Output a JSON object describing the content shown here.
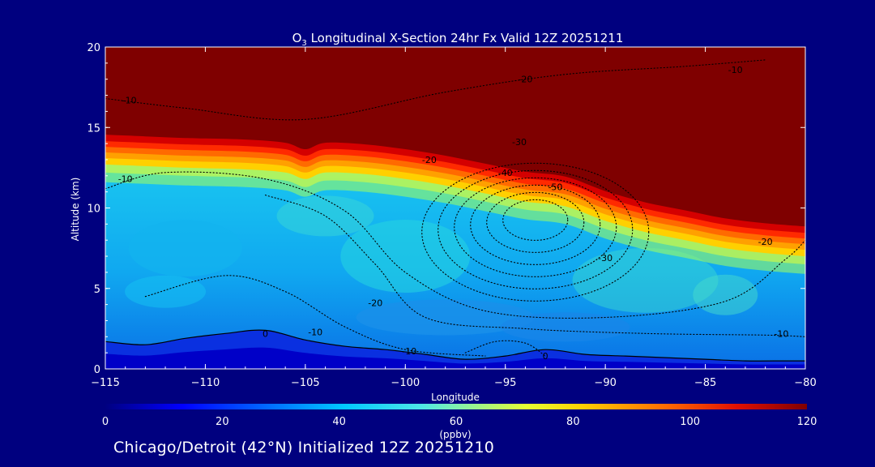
{
  "chart_data": {
    "type": "heatmap",
    "title": "O3 Longitudinal X-Section 24hr  Fx Valid 12Z 20251211",
    "xlabel": "Longitude",
    "ylabel": "Altitude (km)",
    "xlim": [
      -115,
      -80
    ],
    "ylim": [
      0,
      20
    ],
    "x_ticks": [
      -115,
      -110,
      -105,
      -100,
      -95,
      -90,
      -85,
      -80
    ],
    "y_ticks": [
      0,
      5,
      10,
      15,
      20
    ],
    "colorbar": {
      "label": "(ppbv)",
      "range": [
        0,
        120
      ],
      "ticks": [
        0,
        20,
        40,
        60,
        80,
        100,
        120
      ]
    },
    "tropopause_altitude_km": {
      "longitude": [
        -115,
        -113,
        -111,
        -108,
        -106,
        -105,
        -104,
        -102,
        -100,
        -98,
        -96,
        -94,
        -92,
        -90,
        -88,
        -86,
        -84,
        -82,
        -80
      ],
      "altitude": [
        13.8,
        13.7,
        13.6,
        13.5,
        13.3,
        12.9,
        13.3,
        13.2,
        12.9,
        12.5,
        12.0,
        11.5,
        11.2,
        10.3,
        9.6,
        9.1,
        8.6,
        8.3,
        8.1
      ]
    },
    "boundary_layer_top_km": {
      "longitude": [
        -115,
        -113,
        -111,
        -109,
        -107,
        -105,
        -103,
        -101,
        -99,
        -97,
        -95,
        -93,
        -91,
        -89,
        -87,
        -85,
        -83,
        -81,
        -80
      ],
      "altitude": [
        1.7,
        1.5,
        1.9,
        2.2,
        2.4,
        1.8,
        1.4,
        1.2,
        0.9,
        0.6,
        0.8,
        1.2,
        0.9,
        0.8,
        0.7,
        0.6,
        0.5,
        0.5,
        0.5
      ]
    },
    "contour_labels": [
      {
        "text": "-10",
        "lon": -113.8,
        "alt": 16.5
      },
      {
        "text": "-10",
        "lon": -114.0,
        "alt": 11.6
      },
      {
        "text": "-20",
        "lon": -94.0,
        "alt": 17.8
      },
      {
        "text": "-10",
        "lon": -83.5,
        "alt": 18.4
      },
      {
        "text": "-30",
        "lon": -94.3,
        "alt": 13.9
      },
      {
        "text": "-20",
        "lon": -98.8,
        "alt": 12.8
      },
      {
        "text": "-40",
        "lon": -95.0,
        "alt": 12.0
      },
      {
        "text": "-50",
        "lon": -92.5,
        "alt": 11.1
      },
      {
        "text": "-30",
        "lon": -90.0,
        "alt": 6.7
      },
      {
        "text": "-20",
        "lon": -82.0,
        "alt": 7.7
      },
      {
        "text": "-20",
        "lon": -101.5,
        "alt": 3.9
      },
      {
        "text": "-10",
        "lon": -104.5,
        "alt": 2.1
      },
      {
        "text": "-10",
        "lon": -99.8,
        "alt": 0.9
      },
      {
        "text": "-10",
        "lon": -81.2,
        "alt": 2.0
      },
      {
        "text": "0",
        "lon": -107.0,
        "alt": 2.0
      },
      {
        "text": "0",
        "lon": -93.0,
        "alt": 0.6
      }
    ]
  },
  "footer": "Chicago/Detroit (42°N) Initialized 12Z 20251210"
}
